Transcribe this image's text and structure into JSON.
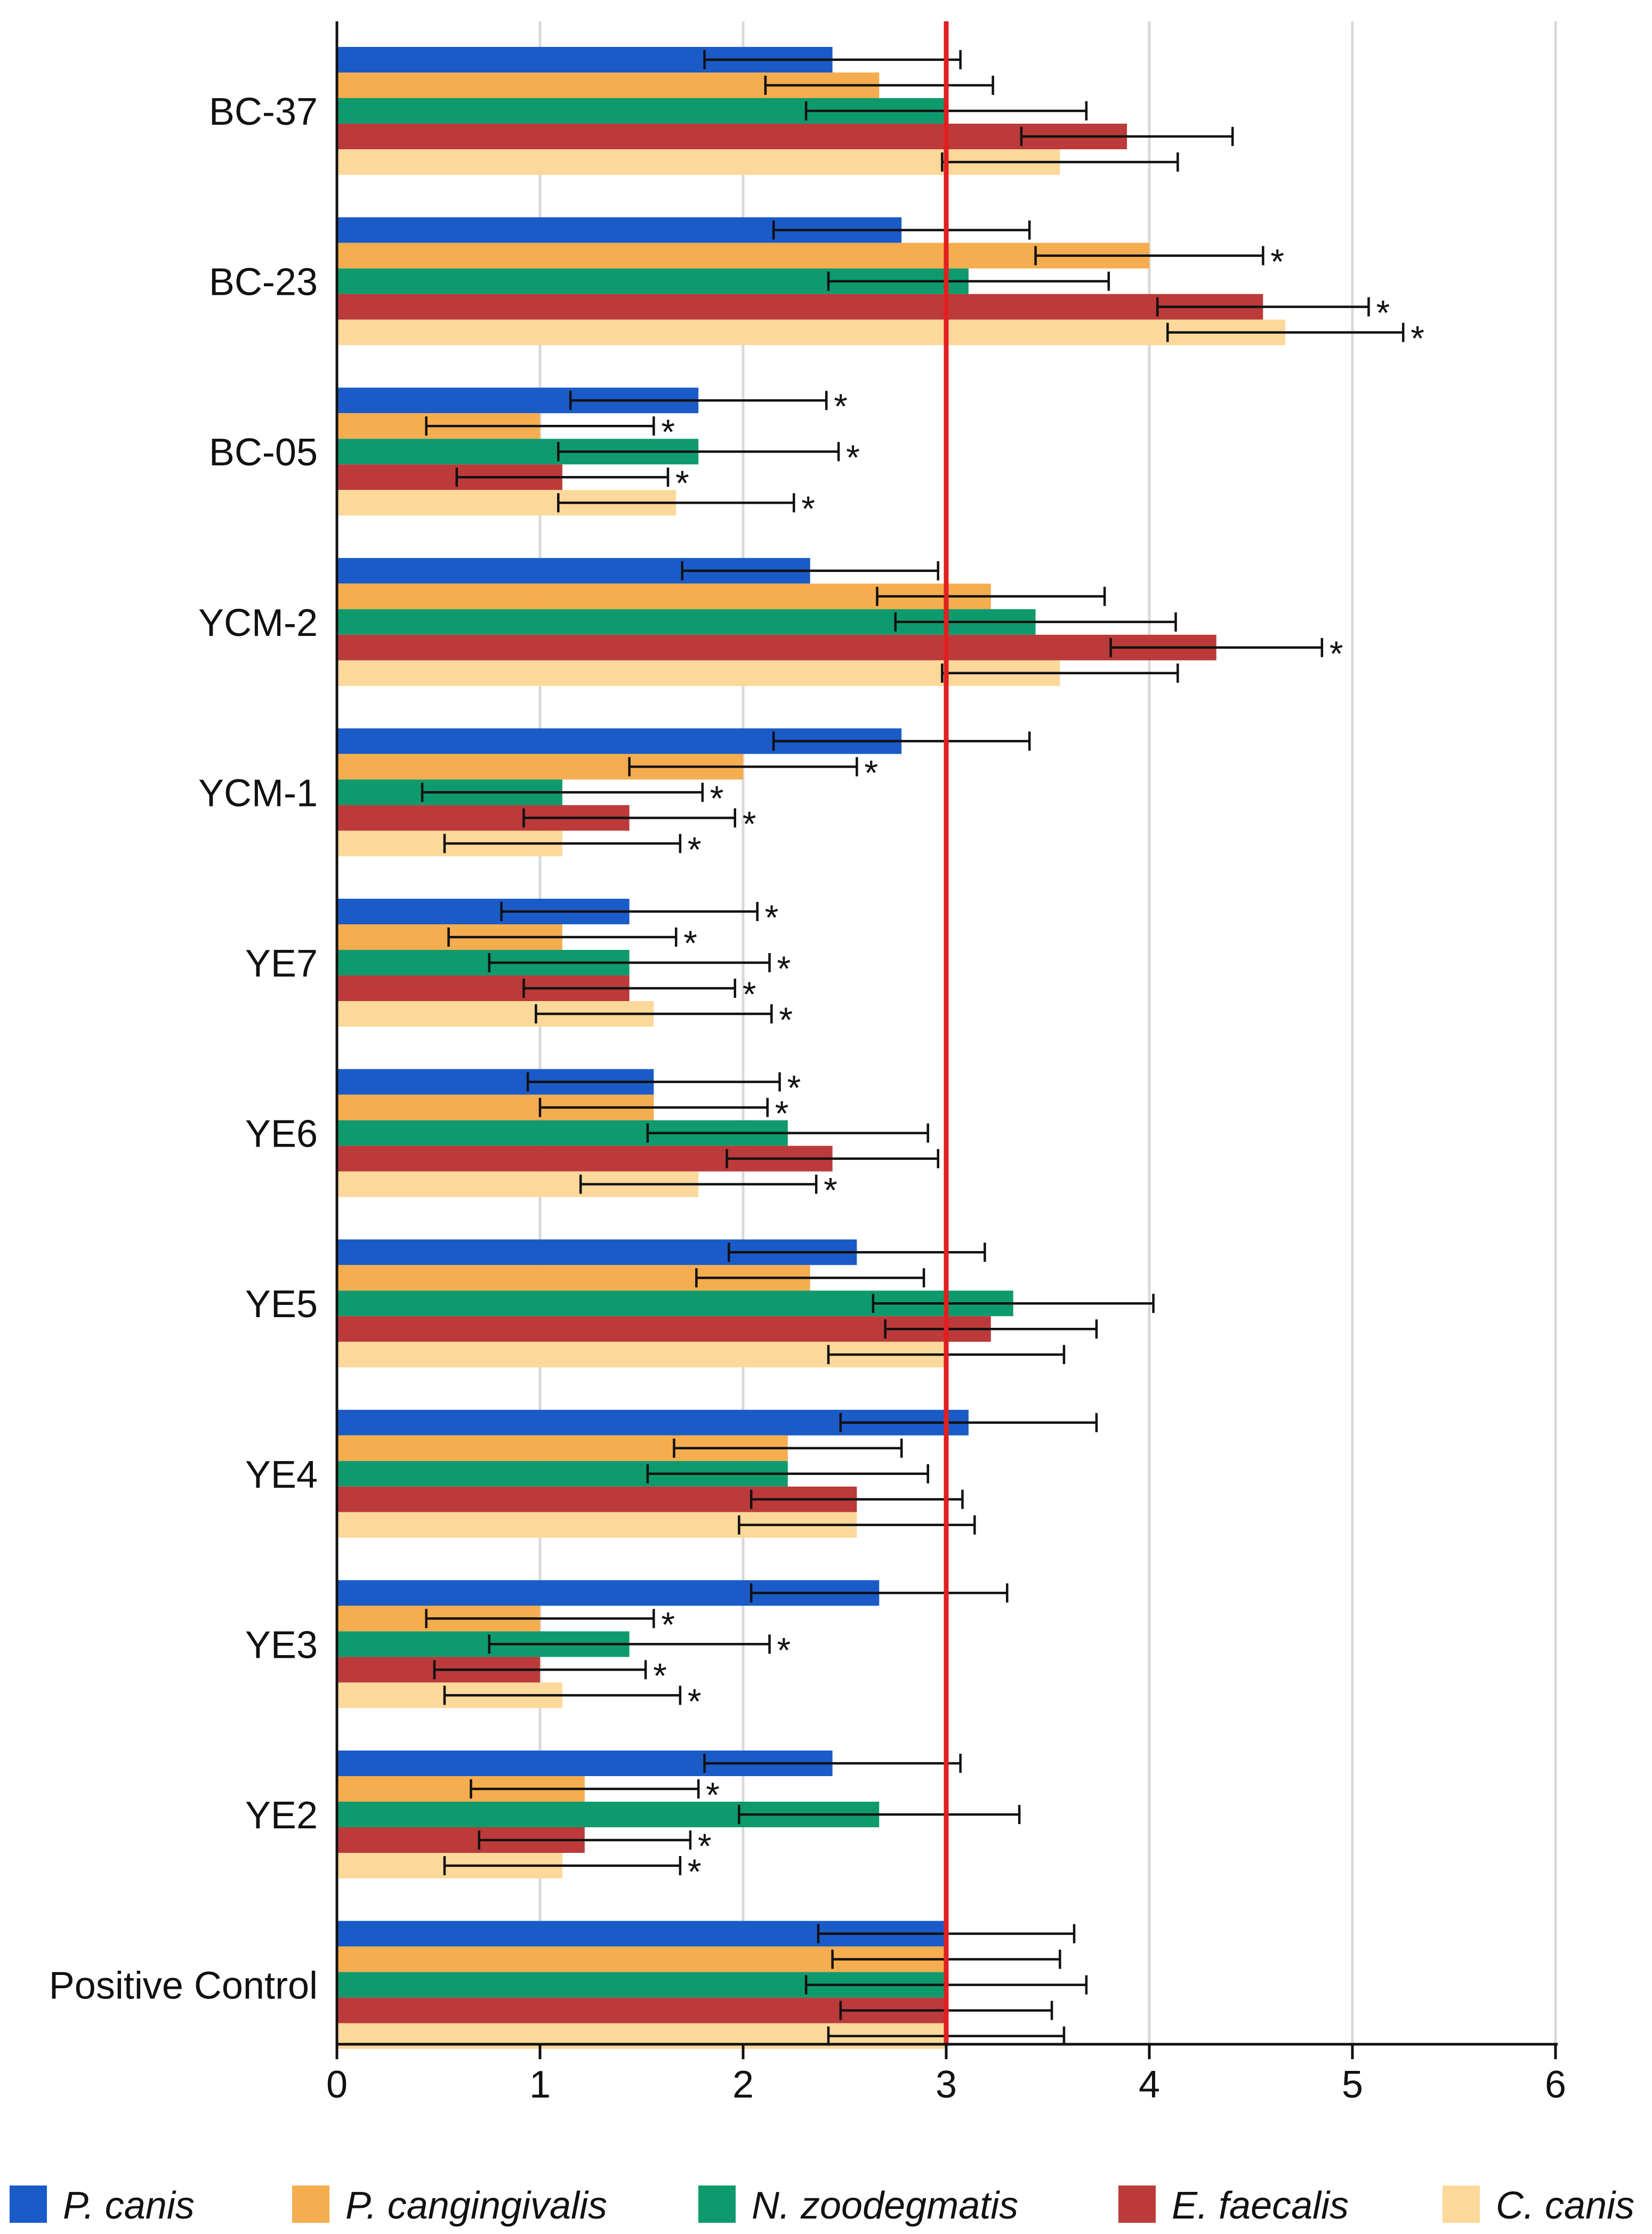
{
  "chart_data": {
    "type": "bar",
    "orientation": "horizontal",
    "categories": [
      "BC-37",
      "BC-23",
      "BC-05",
      "YCM-2",
      "YCM-1",
      "YE7",
      "YE6",
      "YE5",
      "YE4",
      "YE3",
      "YE2",
      "Positive Control"
    ],
    "x_ticks": [
      "0",
      "1",
      "2",
      "3",
      "4",
      "5",
      "6"
    ],
    "xlim": [
      0,
      6
    ],
    "grid": "vertical",
    "reference_line": {
      "value": 3,
      "color": "#e02020"
    },
    "legend_position": "bottom",
    "significance_marker": "*",
    "series": [
      {
        "name": "P. canis",
        "color": "#1a5bc8",
        "values": [
          2.44,
          2.78,
          1.78,
          2.33,
          2.78,
          1.44,
          1.56,
          2.56,
          3.11,
          2.67,
          2.44,
          3.0
        ],
        "errors": [
          0.63,
          0.63,
          0.63,
          0.63,
          0.63,
          0.63,
          0.62,
          0.63,
          0.63,
          0.63,
          0.63,
          0.63
        ],
        "significant": [
          false,
          false,
          true,
          false,
          false,
          true,
          true,
          false,
          false,
          false,
          false,
          false
        ]
      },
      {
        "name": "P. cangingivalis",
        "color": "#f5ad4f",
        "values": [
          2.67,
          4.0,
          1.0,
          3.22,
          2.0,
          1.11,
          1.56,
          2.33,
          2.22,
          1.0,
          1.22,
          3.0
        ],
        "errors": [
          0.56,
          0.56,
          0.56,
          0.56,
          0.56,
          0.56,
          0.56,
          0.56,
          0.56,
          0.56,
          0.56,
          0.56
        ],
        "significant": [
          false,
          true,
          true,
          false,
          true,
          true,
          true,
          false,
          false,
          true,
          true,
          false
        ]
      },
      {
        "name": "N. zoodegmatis",
        "color": "#0f9a6e",
        "values": [
          3.0,
          3.11,
          1.78,
          3.44,
          1.11,
          1.44,
          2.22,
          3.33,
          2.22,
          1.44,
          2.67,
          3.0
        ],
        "errors": [
          0.69,
          0.69,
          0.69,
          0.69,
          0.69,
          0.69,
          0.69,
          0.69,
          0.69,
          0.69,
          0.69,
          0.69
        ],
        "significant": [
          false,
          false,
          true,
          false,
          true,
          true,
          false,
          false,
          false,
          true,
          false,
          false
        ]
      },
      {
        "name": "E. faecalis",
        "color": "#bc3a3a",
        "values": [
          3.89,
          4.56,
          1.11,
          4.33,
          1.44,
          1.44,
          2.44,
          3.22,
          2.56,
          1.0,
          1.22,
          3.0
        ],
        "errors": [
          0.52,
          0.52,
          0.52,
          0.52,
          0.52,
          0.52,
          0.52,
          0.52,
          0.52,
          0.52,
          0.52,
          0.52
        ],
        "significant": [
          false,
          true,
          true,
          true,
          true,
          true,
          false,
          false,
          false,
          true,
          true,
          false
        ]
      },
      {
        "name": "C. canis",
        "color": "#fcd89a",
        "values": [
          3.56,
          4.67,
          1.67,
          3.56,
          1.11,
          1.56,
          1.78,
          3.0,
          2.56,
          1.11,
          1.11,
          3.0
        ],
        "errors": [
          0.58,
          0.58,
          0.58,
          0.58,
          0.58,
          0.58,
          0.58,
          0.58,
          0.58,
          0.58,
          0.58,
          0.58
        ],
        "significant": [
          false,
          true,
          true,
          false,
          true,
          true,
          true,
          false,
          false,
          true,
          true,
          false
        ]
      }
    ]
  }
}
